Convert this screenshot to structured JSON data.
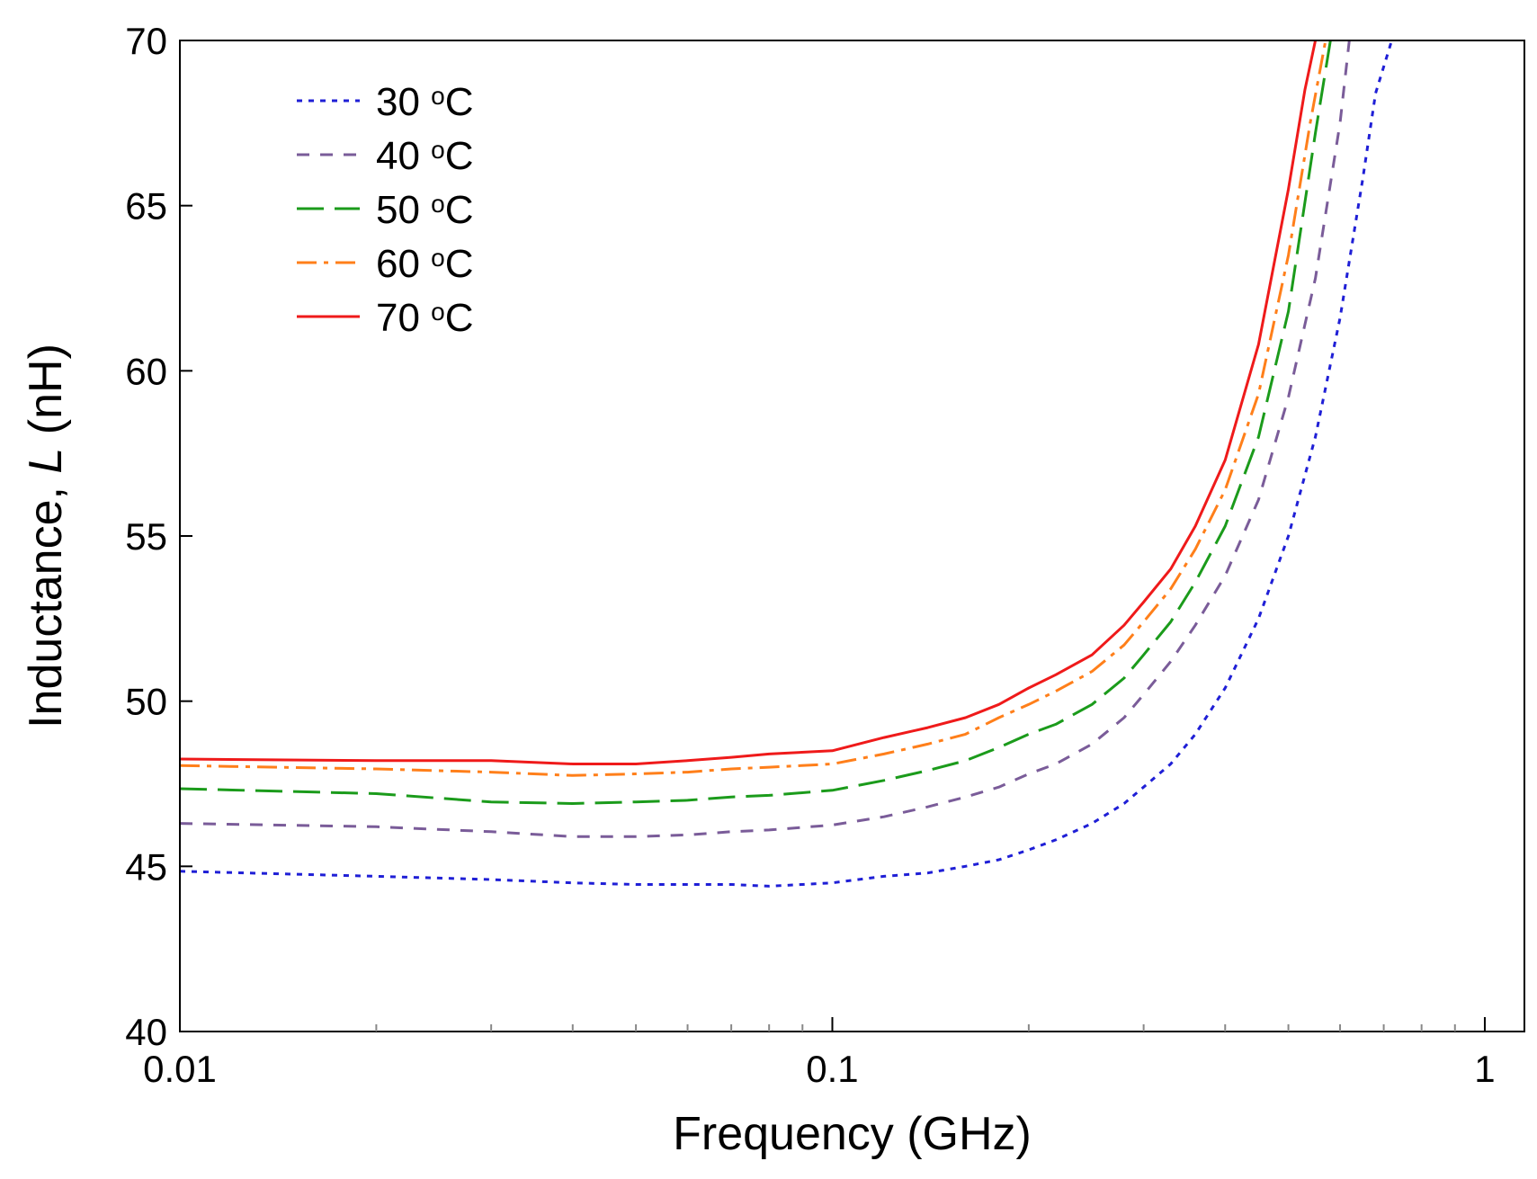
{
  "chart_data": {
    "type": "line",
    "title": "",
    "xlabel": "Frequency (GHz)",
    "ylabel_prefix": "Inductance, ",
    "ylabel_symbol": "L",
    "ylabel_suffix": " (nH)",
    "xscale": "log",
    "xlim": [
      0.01,
      1.15
    ],
    "ylim": [
      40,
      70
    ],
    "x_ticks": [
      {
        "value": 0.01,
        "label": "0.01"
      },
      {
        "value": 0.1,
        "label": "0.1"
      },
      {
        "value": 1,
        "label": "1"
      }
    ],
    "y_ticks": [
      {
        "value": 40,
        "label": "40"
      },
      {
        "value": 45,
        "label": "45"
      },
      {
        "value": 50,
        "label": "50"
      },
      {
        "value": 55,
        "label": "55"
      },
      {
        "value": 60,
        "label": "60"
      },
      {
        "value": 65,
        "label": "65"
      },
      {
        "value": 70,
        "label": "70"
      }
    ],
    "grid": false,
    "legend_position": "top-left",
    "series": [
      {
        "name": "30 °C",
        "temp": "30",
        "unit_sup": "o",
        "unit": "C",
        "color": "#1f1fd6",
        "dash": "6,7",
        "x": [
          0.01,
          0.02,
          0.03,
          0.04,
          0.05,
          0.06,
          0.07,
          0.08,
          0.1,
          0.12,
          0.14,
          0.16,
          0.18,
          0.2,
          0.22,
          0.25,
          0.28,
          0.3,
          0.33,
          0.36,
          0.4,
          0.45,
          0.5,
          0.55,
          0.6,
          0.65,
          0.68,
          0.72
        ],
        "y": [
          44.85,
          44.7,
          44.6,
          44.5,
          44.45,
          44.45,
          44.45,
          44.4,
          44.5,
          44.7,
          44.8,
          45.0,
          45.2,
          45.5,
          45.8,
          46.3,
          46.9,
          47.4,
          48.1,
          49.0,
          50.4,
          52.5,
          55.0,
          58.0,
          61.6,
          65.8,
          68.4,
          70.0
        ]
      },
      {
        "name": "40 °C",
        "temp": "40",
        "unit_sup": "o",
        "unit": "C",
        "color": "#7a5c99",
        "dash": "14,12",
        "x": [
          0.01,
          0.02,
          0.03,
          0.04,
          0.05,
          0.06,
          0.07,
          0.08,
          0.1,
          0.12,
          0.14,
          0.16,
          0.18,
          0.2,
          0.22,
          0.25,
          0.28,
          0.3,
          0.33,
          0.36,
          0.4,
          0.45,
          0.5,
          0.55,
          0.6,
          0.62
        ],
        "y": [
          46.3,
          46.2,
          46.05,
          45.9,
          45.9,
          45.95,
          46.05,
          46.1,
          46.25,
          46.5,
          46.8,
          47.1,
          47.4,
          47.8,
          48.1,
          48.7,
          49.5,
          50.2,
          51.2,
          52.3,
          53.8,
          56.1,
          59.2,
          62.8,
          67.5,
          70.0
        ]
      },
      {
        "name": "50 °C",
        "temp": "50",
        "unit_sup": "o",
        "unit": "C",
        "color": "#1b9b1b",
        "dash": "30,12",
        "x": [
          0.01,
          0.02,
          0.03,
          0.04,
          0.05,
          0.06,
          0.07,
          0.08,
          0.1,
          0.12,
          0.14,
          0.16,
          0.18,
          0.2,
          0.22,
          0.25,
          0.28,
          0.3,
          0.33,
          0.36,
          0.4,
          0.45,
          0.5,
          0.55,
          0.58
        ],
        "y": [
          47.35,
          47.2,
          46.95,
          46.9,
          46.95,
          47.0,
          47.1,
          47.15,
          47.3,
          47.6,
          47.9,
          48.2,
          48.6,
          49.0,
          49.3,
          49.9,
          50.7,
          51.4,
          52.4,
          53.6,
          55.3,
          58.0,
          61.8,
          67.2,
          70.0
        ]
      },
      {
        "name": "60 °C",
        "temp": "60",
        "unit_sup": "o",
        "unit": "C",
        "color": "#ff7f1a",
        "dash": "22,8,5,8",
        "x": [
          0.01,
          0.02,
          0.03,
          0.04,
          0.05,
          0.06,
          0.07,
          0.08,
          0.1,
          0.12,
          0.14,
          0.16,
          0.18,
          0.2,
          0.22,
          0.25,
          0.28,
          0.3,
          0.33,
          0.36,
          0.4,
          0.45,
          0.5,
          0.54,
          0.57
        ],
        "y": [
          48.05,
          47.95,
          47.85,
          47.75,
          47.8,
          47.85,
          47.95,
          48.0,
          48.1,
          48.4,
          48.7,
          49.0,
          49.5,
          49.9,
          50.3,
          50.9,
          51.7,
          52.4,
          53.4,
          54.6,
          56.4,
          59.3,
          63.5,
          67.5,
          70.0
        ]
      },
      {
        "name": "70 °C",
        "temp": "70",
        "unit_sup": "o",
        "unit": "C",
        "color": "#ef1a1a",
        "dash": "",
        "x": [
          0.01,
          0.02,
          0.03,
          0.04,
          0.05,
          0.06,
          0.07,
          0.08,
          0.1,
          0.12,
          0.14,
          0.16,
          0.18,
          0.2,
          0.22,
          0.25,
          0.28,
          0.3,
          0.33,
          0.36,
          0.4,
          0.45,
          0.5,
          0.53,
          0.55
        ],
        "y": [
          48.25,
          48.2,
          48.2,
          48.1,
          48.1,
          48.2,
          48.3,
          48.4,
          48.5,
          48.9,
          49.2,
          49.5,
          49.9,
          50.4,
          50.8,
          51.4,
          52.3,
          53.0,
          54.0,
          55.3,
          57.3,
          60.8,
          65.5,
          68.5,
          70.0
        ]
      }
    ]
  }
}
